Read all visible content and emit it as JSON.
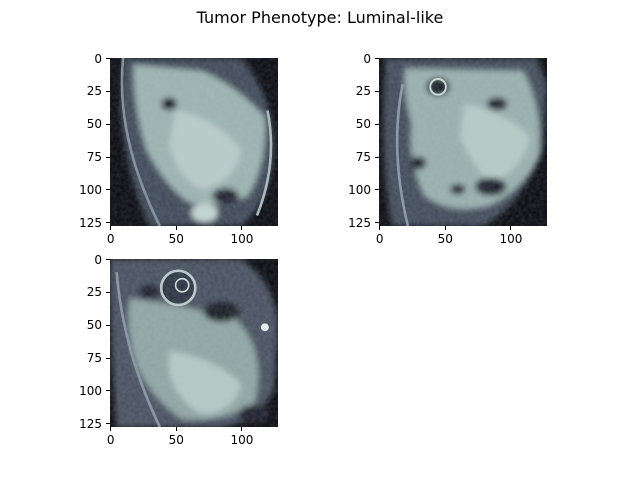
{
  "figure": {
    "title": "Tumor Phenotype: Luminal-like",
    "colormap": "bone",
    "background": "#ffffff"
  },
  "axes": {
    "x_ticks": [
      "0",
      "50",
      "100"
    ],
    "y_ticks": [
      "0",
      "25",
      "50",
      "75",
      "100",
      "125"
    ],
    "x_tick_values": [
      0,
      50,
      100
    ],
    "y_tick_values": [
      0,
      25,
      50,
      75,
      100,
      125
    ],
    "image_size": [
      128,
      128
    ]
  },
  "panels": [
    {
      "id": "slice-1",
      "colors": {
        "dark": "#08080f",
        "mid": "#5c6a7c",
        "bright": "#b2c8c4",
        "highlight": "#e6f4f0"
      }
    },
    {
      "id": "slice-2",
      "colors": {
        "dark": "#08080f",
        "mid": "#5c6a7c",
        "bright": "#b2c8c4",
        "highlight": "#e6f4f0"
      }
    },
    {
      "id": "slice-3",
      "colors": {
        "dark": "#08080f",
        "mid": "#5c6a7c",
        "bright": "#b2c8c4",
        "highlight": "#e6f4f0"
      }
    }
  ]
}
